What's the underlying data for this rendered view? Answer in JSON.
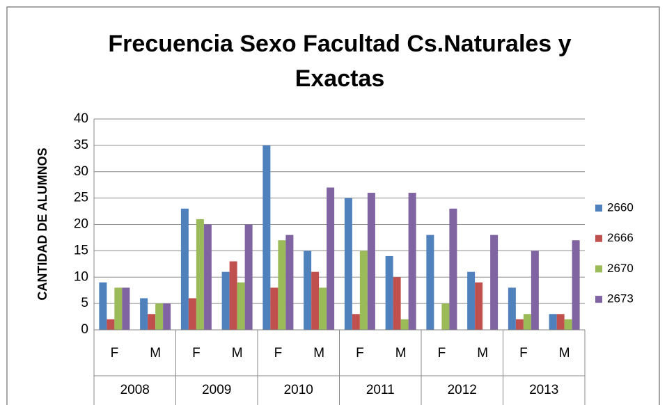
{
  "chart_data": {
    "type": "bar",
    "title": "Frecuencia Sexo Facultad Cs.Naturales y Exactas",
    "y_label": "CANTIDAD DE ALUMNOS",
    "categories": [
      "F",
      "M",
      "F",
      "M",
      "F",
      "M",
      "F",
      "M",
      "F",
      "M",
      "F",
      "M"
    ],
    "groups": [
      "2008",
      "2009",
      "2010",
      "2011",
      "2012",
      "2013"
    ],
    "series": [
      {
        "name": "2660",
        "color": "#4f81bd",
        "values": [
          9,
          6,
          23,
          11,
          35,
          15,
          25,
          14,
          18,
          11,
          8,
          3
        ]
      },
      {
        "name": "2666",
        "color": "#c0504d",
        "values": [
          2,
          3,
          6,
          13,
          8,
          11,
          3,
          10,
          0,
          9,
          2,
          3
        ]
      },
      {
        "name": "2670",
        "color": "#9bbb59",
        "values": [
          8,
          5,
          21,
          9,
          17,
          8,
          15,
          2,
          5,
          0,
          3,
          2
        ]
      },
      {
        "name": "2673",
        "color": "#8064a2",
        "values": [
          8,
          5,
          20,
          20,
          18,
          27,
          26,
          26,
          23,
          18,
          15,
          17
        ]
      }
    ],
    "ylim": [
      0,
      40
    ],
    "yticks": [
      0,
      5,
      10,
      15,
      20,
      25,
      30,
      35,
      40
    ],
    "grid": true,
    "legend": "right"
  }
}
